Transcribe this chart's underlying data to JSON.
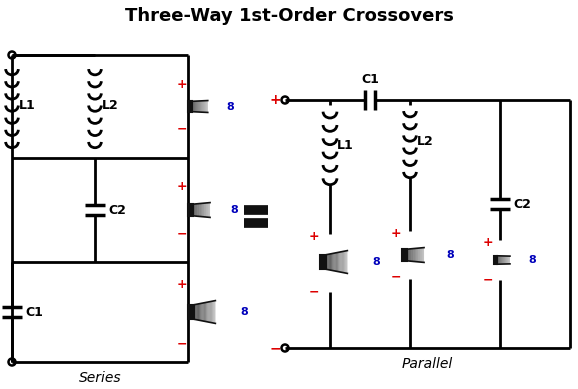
{
  "title": "Three-Way 1st-Order Crossovers",
  "title_fontsize": 13,
  "bg_color": "#ffffff",
  "line_color": "#000000",
  "red": "#dd0000",
  "blue": "#0000bb",
  "label_fontsize": 9,
  "series_label": "Series",
  "parallel_label": "Parallel",
  "lw": 2.0,
  "lw_thick": 2.5
}
